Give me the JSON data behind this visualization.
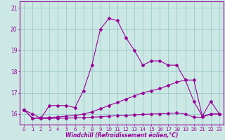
{
  "xlabel": "Windchill (Refroidissement éolien,°C)",
  "bg_color": "#cce8e4",
  "grid_color": "#99cccc",
  "line_color": "#990099",
  "x": [
    0,
    1,
    2,
    3,
    4,
    5,
    6,
    7,
    8,
    9,
    10,
    11,
    12,
    13,
    14,
    15,
    16,
    17,
    18,
    19,
    20,
    21,
    22,
    23
  ],
  "line1": [
    16.2,
    16.0,
    15.8,
    16.4,
    16.4,
    16.4,
    16.3,
    17.1,
    18.3,
    20.0,
    20.5,
    20.4,
    19.6,
    19.0,
    18.3,
    18.5,
    18.5,
    18.3,
    18.3,
    17.6,
    16.6,
    15.9,
    16.6,
    16.0
  ],
  "line2": [
    16.2,
    15.8,
    15.82,
    15.84,
    15.86,
    15.9,
    15.93,
    16.0,
    16.1,
    16.25,
    16.4,
    16.55,
    16.7,
    16.85,
    17.0,
    17.1,
    17.2,
    17.35,
    17.5,
    17.6,
    17.6,
    15.9,
    16.0,
    16.0
  ],
  "line3": [
    16.2,
    15.8,
    15.79,
    15.79,
    15.8,
    15.81,
    15.82,
    15.83,
    15.85,
    15.87,
    15.9,
    15.92,
    15.94,
    15.96,
    15.98,
    16.0,
    16.01,
    16.03,
    16.05,
    16.0,
    15.85,
    15.85,
    16.0,
    16.0
  ],
  "ylim": [
    15.5,
    21.3
  ],
  "yticks": [
    16,
    17,
    18,
    19,
    20,
    21
  ],
  "xticks": [
    0,
    1,
    2,
    3,
    4,
    5,
    6,
    7,
    8,
    9,
    10,
    11,
    12,
    13,
    14,
    15,
    16,
    17,
    18,
    19,
    20,
    21,
    22,
    23
  ],
  "marker": "D",
  "markersize": 2,
  "linewidth": 0.8,
  "tick_fontsize": 5,
  "xlabel_fontsize": 5.5
}
